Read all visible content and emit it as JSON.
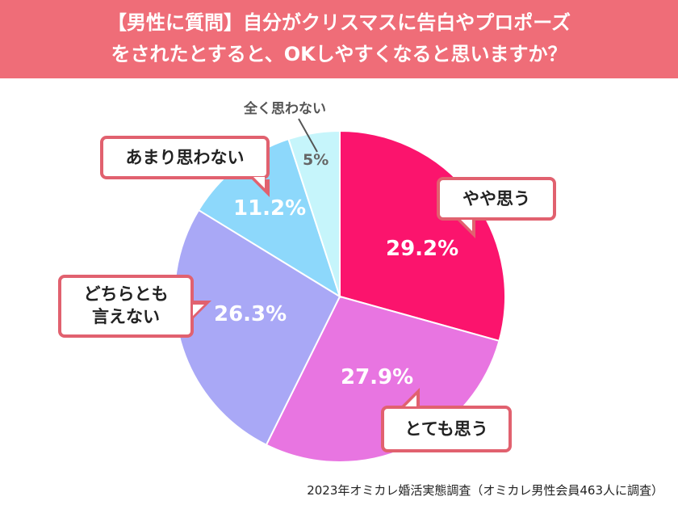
{
  "header": {
    "line1": "【男性に質問】自分がクリスマスに告白やプロポーズ",
    "line2": "をされたとすると、OKしやすくなると思いますか？"
  },
  "chart_data": {
    "type": "pie",
    "categories": [
      "やや思う",
      "とても思う",
      "どちらとも言えない",
      "あまり思わない",
      "全く思わない"
    ],
    "values": [
      29.2,
      27.9,
      26.3,
      11.2,
      5
    ],
    "labels": [
      "29.2%",
      "27.9%",
      "26.3%",
      "11.2%",
      "5%"
    ],
    "colors": [
      "#fb146d",
      "#e875e1",
      "#a9a8f6",
      "#8dd8fb",
      "#c6f5fb"
    ]
  },
  "callouts": {
    "yaya": "やや思う",
    "totemo": "とても思う",
    "dochira_line1": "どちらとも",
    "dochira_line2": "言えない",
    "amari": "あまり思わない",
    "mattaku": "全く思わない"
  },
  "source": "2023年オミカレ婚活実態調査（オミカレ男性会員463人に調査）"
}
